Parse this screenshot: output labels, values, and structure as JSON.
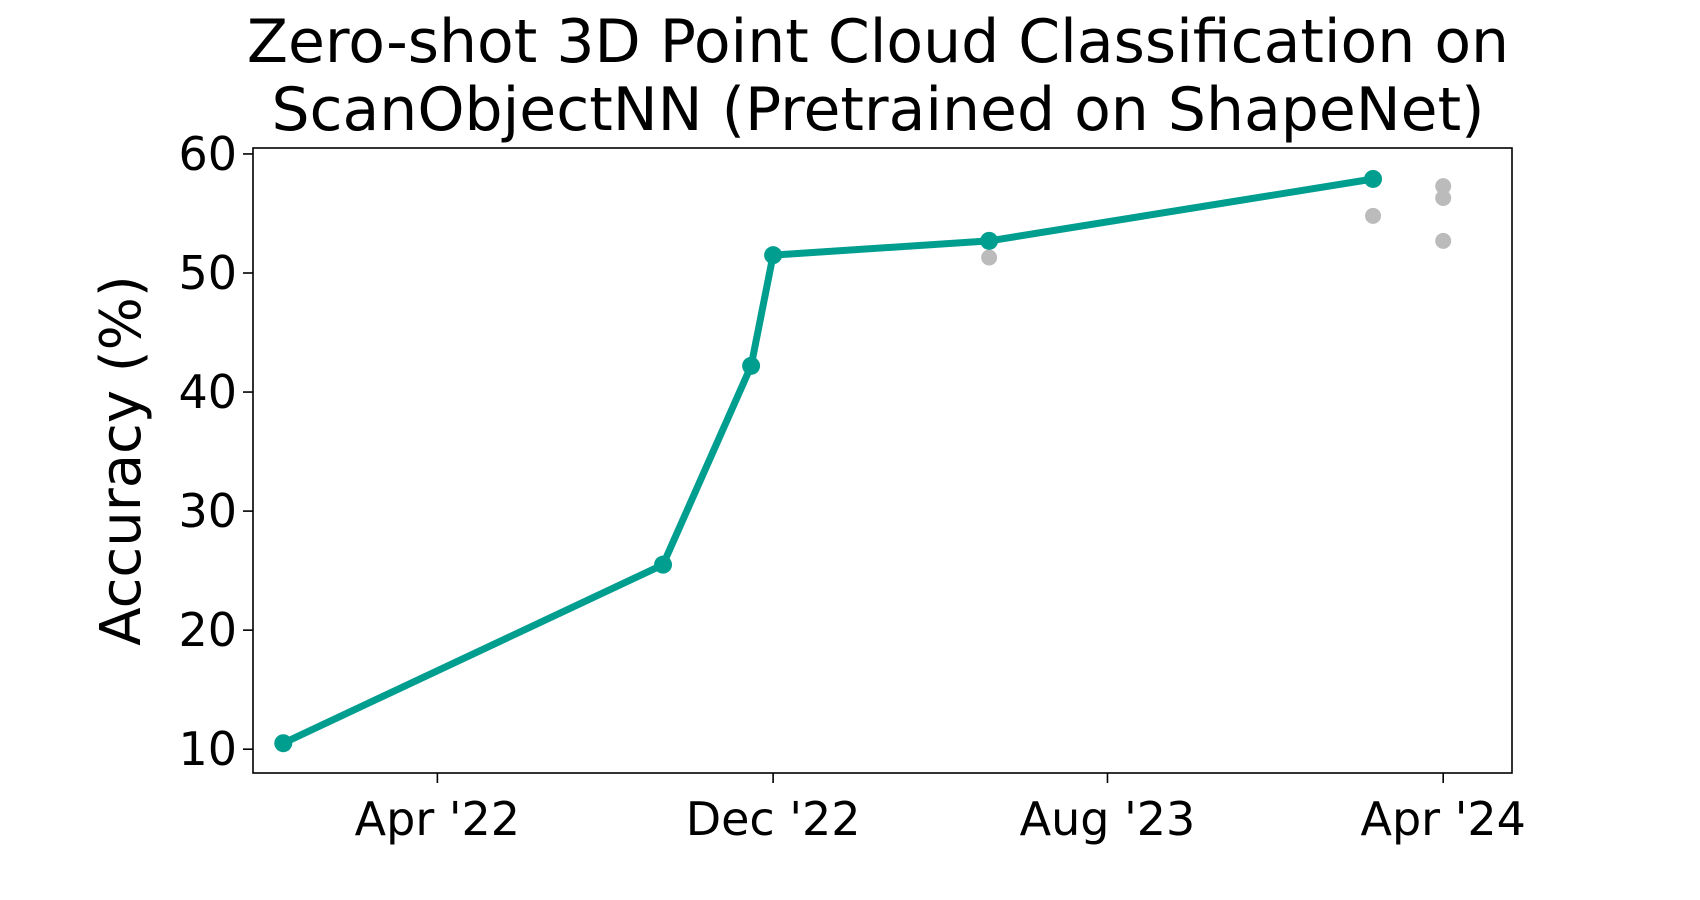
{
  "chart_data": {
    "type": "line",
    "title_lines": [
      "Zero-shot 3D Point Cloud Classification on",
      "ScanObjectNN (Pretrained on ShapeNet)"
    ],
    "xlabel": "",
    "ylabel": "Accuracy (%)",
    "ylim": [
      8,
      60.5
    ],
    "xlim": [
      "2021-11-18",
      "2024-05-21"
    ],
    "yticks": [
      10,
      20,
      30,
      40,
      50,
      60
    ],
    "xticks": [
      {
        "date": "2022-04-01",
        "label": "Apr '22"
      },
      {
        "date": "2022-12-01",
        "label": "Dec '22"
      },
      {
        "date": "2023-08-01",
        "label": "Aug '23"
      },
      {
        "date": "2024-04-01",
        "label": "Apr '24"
      }
    ],
    "grid": false,
    "legend": "none",
    "series": [
      {
        "role": "sota",
        "color": "#009e8f",
        "connected": true,
        "points": [
          {
            "x": "2021-12-10",
            "y": 10.5
          },
          {
            "x": "2022-09-12",
            "y": 25.5
          },
          {
            "x": "2022-11-15",
            "y": 42.2
          },
          {
            "x": "2022-12-01",
            "y": 51.5
          },
          {
            "x": "2023-05-07",
            "y": 52.7
          },
          {
            "x": "2024-02-10",
            "y": 57.9
          }
        ]
      },
      {
        "role": "other",
        "color": "#bbbbbb",
        "connected": false,
        "points": [
          {
            "x": "2023-05-07",
            "y": 51.3
          },
          {
            "x": "2024-02-10",
            "y": 54.8
          },
          {
            "x": "2024-04-01",
            "y": 57.3
          },
          {
            "x": "2024-04-01",
            "y": 56.3
          },
          {
            "x": "2024-04-01",
            "y": 52.7
          }
        ]
      }
    ]
  }
}
